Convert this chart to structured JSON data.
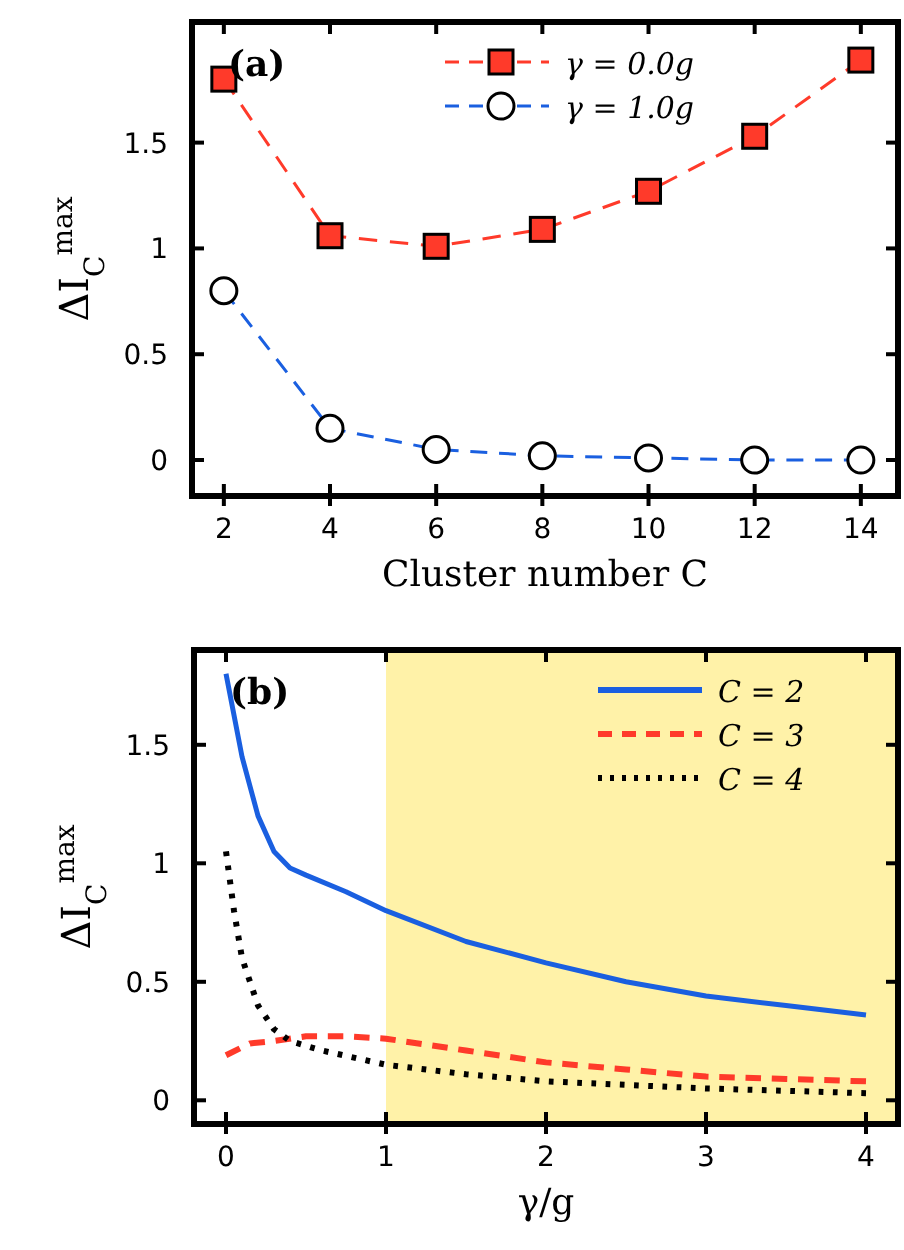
{
  "chart_data": [
    {
      "type": "line",
      "annotations": [
        "(a)"
      ],
      "xlabel": "Cluster number C",
      "ylabel": "ΔI$_{C}$$^{max}$",
      "x": [
        2,
        4,
        6,
        8,
        10,
        12,
        14
      ],
      "xlim": [
        1.4,
        14.7
      ],
      "xticks": [
        2,
        4,
        6,
        8,
        10,
        12,
        14
      ],
      "ylim": [
        -0.17,
        2.07
      ],
      "yticks": [
        0,
        0.5,
        1,
        1.5
      ],
      "legend": "top",
      "grid": false,
      "series": [
        {
          "name": "γ = 0.0g",
          "color": "#ff3a2a",
          "marker": "square",
          "line_style": "dashed",
          "values": [
            1.8,
            1.06,
            1.01,
            1.09,
            1.27,
            1.53,
            1.89
          ]
        },
        {
          "name": "γ = 1.0g",
          "color": "#1a5fe0",
          "marker": "circle",
          "line_style": "dashed",
          "values": [
            0.8,
            0.15,
            0.05,
            0.02,
            0.01,
            0.0,
            0.0
          ]
        }
      ]
    },
    {
      "type": "line",
      "annotations": [
        "(b)"
      ],
      "xlabel": "γ/g",
      "ylabel": "ΔI$_{C}$$^{max}$",
      "xlim": [
        -0.2,
        4.2
      ],
      "xticks": [
        0,
        1,
        2,
        3,
        4
      ],
      "ylim": [
        -0.1,
        1.9
      ],
      "yticks": [
        0,
        0.5,
        1,
        1.5
      ],
      "legend": "top right",
      "grid": false,
      "bands": [
        {
          "axis": "x",
          "from": 1,
          "to": 4.2,
          "color": "#fff2a8"
        }
      ],
      "series": [
        {
          "name": "C = 2",
          "color": "#1a5fe0",
          "line_style": "solid",
          "x": [
            0,
            0.1,
            0.2,
            0.3,
            0.4,
            0.5,
            0.75,
            1,
            1.5,
            2,
            2.5,
            3,
            3.5,
            4
          ],
          "values": [
            1.8,
            1.45,
            1.2,
            1.05,
            0.98,
            0.95,
            0.88,
            0.8,
            0.67,
            0.58,
            0.5,
            0.44,
            0.4,
            0.36
          ]
        },
        {
          "name": "C = 3",
          "color": "#ff3a2a",
          "line_style": "dashed",
          "x": [
            0,
            0.15,
            0.3,
            0.5,
            0.75,
            1,
            1.5,
            2,
            2.5,
            3,
            3.5,
            4
          ],
          "values": [
            0.19,
            0.24,
            0.25,
            0.27,
            0.27,
            0.26,
            0.21,
            0.16,
            0.13,
            0.1,
            0.09,
            0.08
          ]
        },
        {
          "name": "C = 4",
          "color": "#000000",
          "line_style": "dotted",
          "x": [
            0,
            0.05,
            0.1,
            0.2,
            0.3,
            0.4,
            0.6,
            1,
            1.5,
            2,
            3,
            4
          ],
          "values": [
            1.05,
            0.8,
            0.6,
            0.4,
            0.3,
            0.25,
            0.21,
            0.15,
            0.11,
            0.08,
            0.05,
            0.03
          ]
        }
      ]
    }
  ]
}
